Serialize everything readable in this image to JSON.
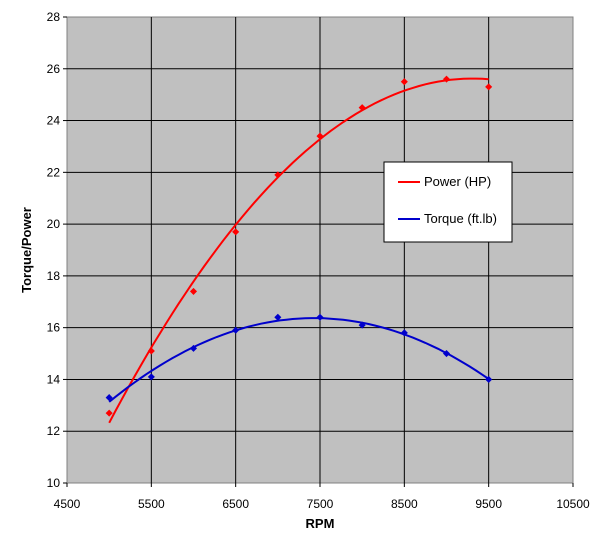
{
  "chart_data": {
    "type": "scatter",
    "xlabel": "RPM",
    "ylabel": "Torque/Power",
    "xlim": [
      4500,
      10500
    ],
    "ylim": [
      10,
      28
    ],
    "xticks": [
      4500,
      5500,
      6500,
      7500,
      8500,
      9500,
      10500
    ],
    "yticks": [
      10,
      12,
      14,
      16,
      18,
      20,
      22,
      24,
      26,
      28
    ],
    "grid": true,
    "plot_background": "#c0c0c0",
    "legend_position": "right",
    "series": [
      {
        "name": "Power (HP)",
        "color": "#ff0000",
        "x": [
          5000,
          5500,
          6000,
          6500,
          7000,
          7500,
          8000,
          8500,
          9000,
          9500
        ],
        "y": [
          12.7,
          15.1,
          17.4,
          19.7,
          21.9,
          23.4,
          24.5,
          25.5,
          25.6,
          25.3
        ],
        "trendline": "polynomial"
      },
      {
        "name": "Torque (ft.lb)",
        "color": "#0000cc",
        "x": [
          5000,
          5500,
          6000,
          6500,
          7000,
          7500,
          8000,
          8500,
          9000,
          9500
        ],
        "y": [
          13.3,
          14.1,
          15.2,
          15.9,
          16.4,
          16.4,
          16.1,
          15.8,
          15.0,
          14.0
        ],
        "trendline": "polynomial"
      }
    ]
  }
}
